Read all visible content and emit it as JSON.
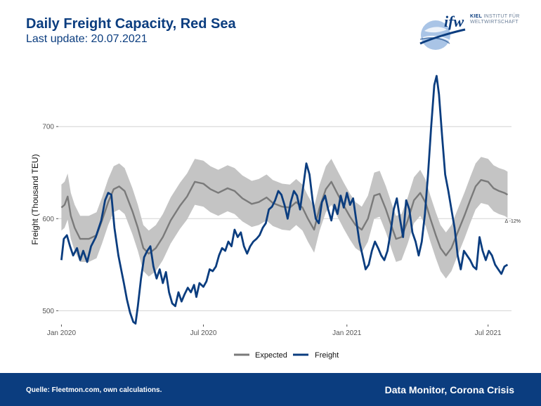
{
  "header": {
    "title": "Daily Freight Capacity, Red Sea",
    "subtitle": "Last update: 20.07.2021"
  },
  "logo": {
    "mark": "ifw",
    "line1_bold": "KIEL",
    "line1_rest": "INSTITUT FÜR",
    "line2": "WELTWIRTSCHAFT",
    "icon": "globe-icon"
  },
  "footer": {
    "source": "Quelle: Fleetmon.com, own calculations.",
    "brand": "Data Monitor, Corona Crisis"
  },
  "colors": {
    "freight": "#0b3d7f",
    "expected": "#7a7a7a",
    "band": "#c4c4c4",
    "footer_bg": "#0b3d7f"
  },
  "chart_data": {
    "type": "line",
    "title": "",
    "xlabel": "",
    "ylabel": "Freight (Thousand TEU)",
    "ylim": [
      485,
      765
    ],
    "y_ticks": [
      500,
      600,
      700
    ],
    "x_ticks": [
      "Jan 2020",
      "Jul 2020",
      "Jan 2021",
      "Jul 2021"
    ],
    "x_tick_dates": [
      "2020-01-01",
      "2020-07-01",
      "2021-01-01",
      "2021-07-01"
    ],
    "x_range": [
      "2019-12-28",
      "2021-07-31"
    ],
    "annotation": "Δ -12%",
    "grid": "horizontal",
    "legend_position": "bottom",
    "legend": [
      "Expected",
      "Freight"
    ],
    "series": [
      {
        "name": "Expected",
        "kind": "line-with-band",
        "points": [
          [
            "2020-01-01",
            612
          ],
          [
            "2020-01-05",
            615
          ],
          [
            "2020-01-09",
            624
          ],
          [
            "2020-01-13",
            603
          ],
          [
            "2020-01-18",
            590
          ],
          [
            "2020-01-25",
            578
          ],
          [
            "2020-02-05",
            578
          ],
          [
            "2020-02-15",
            582
          ],
          [
            "2020-02-22",
            598
          ],
          [
            "2020-03-01",
            618
          ],
          [
            "2020-03-08",
            632
          ],
          [
            "2020-03-15",
            635
          ],
          [
            "2020-03-22",
            630
          ],
          [
            "2020-04-01",
            608
          ],
          [
            "2020-04-08",
            590
          ],
          [
            "2020-04-15",
            568
          ],
          [
            "2020-04-22",
            562
          ],
          [
            "2020-05-01",
            568
          ],
          [
            "2020-05-10",
            580
          ],
          [
            "2020-05-20",
            598
          ],
          [
            "2020-06-01",
            614
          ],
          [
            "2020-06-10",
            624
          ],
          [
            "2020-06-20",
            640
          ],
          [
            "2020-07-01",
            638
          ],
          [
            "2020-07-10",
            632
          ],
          [
            "2020-07-20",
            628
          ],
          [
            "2020-08-01",
            633
          ],
          [
            "2020-08-10",
            630
          ],
          [
            "2020-08-20",
            622
          ],
          [
            "2020-09-01",
            616
          ],
          [
            "2020-09-10",
            618
          ],
          [
            "2020-09-20",
            623
          ],
          [
            "2020-09-28",
            617
          ],
          [
            "2020-10-10",
            613
          ],
          [
            "2020-10-20",
            612
          ],
          [
            "2020-10-28",
            618
          ],
          [
            "2020-11-05",
            612
          ],
          [
            "2020-11-12",
            600
          ],
          [
            "2020-11-20",
            588
          ],
          [
            "2020-11-27",
            612
          ],
          [
            "2020-12-05",
            632
          ],
          [
            "2020-12-12",
            640
          ],
          [
            "2020-12-20",
            627
          ],
          [
            "2020-12-28",
            614
          ],
          [
            "2021-01-05",
            602
          ],
          [
            "2021-01-12",
            593
          ],
          [
            "2021-01-20",
            588
          ],
          [
            "2021-01-28",
            600
          ],
          [
            "2021-02-05",
            625
          ],
          [
            "2021-02-12",
            627
          ],
          [
            "2021-02-20",
            610
          ],
          [
            "2021-02-28",
            590
          ],
          [
            "2021-03-05",
            578
          ],
          [
            "2021-03-12",
            580
          ],
          [
            "2021-03-20",
            598
          ],
          [
            "2021-03-28",
            620
          ],
          [
            "2021-04-05",
            628
          ],
          [
            "2021-04-12",
            617
          ],
          [
            "2021-04-18",
            600
          ],
          [
            "2021-04-25",
            582
          ],
          [
            "2021-05-01",
            568
          ],
          [
            "2021-05-08",
            560
          ],
          [
            "2021-05-15",
            568
          ],
          [
            "2021-05-22",
            583
          ],
          [
            "2021-06-01",
            604
          ],
          [
            "2021-06-08",
            620
          ],
          [
            "2021-06-15",
            635
          ],
          [
            "2021-06-22",
            642
          ],
          [
            "2021-07-01",
            640
          ],
          [
            "2021-07-08",
            633
          ],
          [
            "2021-07-15",
            630
          ],
          [
            "2021-07-22",
            628
          ],
          [
            "2021-07-26",
            626
          ]
        ],
        "band_halfwidth": 25
      },
      {
        "name": "Freight",
        "kind": "line",
        "points": [
          [
            "2020-01-01",
            555
          ],
          [
            "2020-01-04",
            578
          ],
          [
            "2020-01-08",
            582
          ],
          [
            "2020-01-12",
            570
          ],
          [
            "2020-01-16",
            560
          ],
          [
            "2020-01-21",
            568
          ],
          [
            "2020-01-25",
            555
          ],
          [
            "2020-01-29",
            565
          ],
          [
            "2020-02-03",
            553
          ],
          [
            "2020-02-08",
            570
          ],
          [
            "2020-02-14",
            580
          ],
          [
            "2020-02-21",
            598
          ],
          [
            "2020-02-26",
            620
          ],
          [
            "2020-03-01",
            628
          ],
          [
            "2020-03-05",
            626
          ],
          [
            "2020-03-09",
            590
          ],
          [
            "2020-03-14",
            560
          ],
          [
            "2020-03-18",
            543
          ],
          [
            "2020-03-21",
            530
          ],
          [
            "2020-03-25",
            512
          ],
          [
            "2020-03-29",
            498
          ],
          [
            "2020-04-02",
            488
          ],
          [
            "2020-04-05",
            486
          ],
          [
            "2020-04-08",
            505
          ],
          [
            "2020-04-12",
            535
          ],
          [
            "2020-04-16",
            558
          ],
          [
            "2020-04-20",
            565
          ],
          [
            "2020-04-24",
            570
          ],
          [
            "2020-04-28",
            548
          ],
          [
            "2020-05-02",
            535
          ],
          [
            "2020-05-06",
            545
          ],
          [
            "2020-05-10",
            530
          ],
          [
            "2020-05-14",
            542
          ],
          [
            "2020-05-18",
            520
          ],
          [
            "2020-05-22",
            508
          ],
          [
            "2020-05-26",
            505
          ],
          [
            "2020-05-30",
            520
          ],
          [
            "2020-06-03",
            510
          ],
          [
            "2020-06-07",
            518
          ],
          [
            "2020-06-11",
            525
          ],
          [
            "2020-06-15",
            520
          ],
          [
            "2020-06-19",
            528
          ],
          [
            "2020-06-22",
            515
          ],
          [
            "2020-06-26",
            530
          ],
          [
            "2020-07-01",
            526
          ],
          [
            "2020-07-05",
            532
          ],
          [
            "2020-07-09",
            545
          ],
          [
            "2020-07-13",
            543
          ],
          [
            "2020-07-17",
            548
          ],
          [
            "2020-07-21",
            560
          ],
          [
            "2020-07-25",
            568
          ],
          [
            "2020-07-29",
            565
          ],
          [
            "2020-08-02",
            575
          ],
          [
            "2020-08-06",
            570
          ],
          [
            "2020-08-10",
            588
          ],
          [
            "2020-08-14",
            580
          ],
          [
            "2020-08-18",
            585
          ],
          [
            "2020-08-22",
            570
          ],
          [
            "2020-08-26",
            562
          ],
          [
            "2020-08-30",
            570
          ],
          [
            "2020-09-03",
            575
          ],
          [
            "2020-09-07",
            578
          ],
          [
            "2020-09-11",
            582
          ],
          [
            "2020-09-15",
            590
          ],
          [
            "2020-09-19",
            595
          ],
          [
            "2020-09-23",
            610
          ],
          [
            "2020-09-27",
            613
          ],
          [
            "2020-10-01",
            620
          ],
          [
            "2020-10-05",
            630
          ],
          [
            "2020-10-09",
            626
          ],
          [
            "2020-10-13",
            615
          ],
          [
            "2020-10-17",
            600
          ],
          [
            "2020-10-21",
            618
          ],
          [
            "2020-10-25",
            630
          ],
          [
            "2020-10-29",
            625
          ],
          [
            "2020-11-02",
            610
          ],
          [
            "2020-11-06",
            635
          ],
          [
            "2020-11-10",
            660
          ],
          [
            "2020-11-14",
            648
          ],
          [
            "2020-11-18",
            620
          ],
          [
            "2020-11-22",
            600
          ],
          [
            "2020-11-26",
            595
          ],
          [
            "2020-11-30",
            618
          ],
          [
            "2020-12-04",
            625
          ],
          [
            "2020-12-08",
            610
          ],
          [
            "2020-12-12",
            598
          ],
          [
            "2020-12-16",
            615
          ],
          [
            "2020-12-20",
            605
          ],
          [
            "2020-12-24",
            625
          ],
          [
            "2020-12-28",
            612
          ],
          [
            "2021-01-01",
            628
          ],
          [
            "2021-01-05",
            615
          ],
          [
            "2021-01-09",
            622
          ],
          [
            "2021-01-13",
            598
          ],
          [
            "2021-01-17",
            575
          ],
          [
            "2021-01-21",
            560
          ],
          [
            "2021-01-25",
            545
          ],
          [
            "2021-01-29",
            550
          ],
          [
            "2021-02-02",
            565
          ],
          [
            "2021-02-06",
            575
          ],
          [
            "2021-02-10",
            568
          ],
          [
            "2021-02-14",
            560
          ],
          [
            "2021-02-18",
            555
          ],
          [
            "2021-02-22",
            565
          ],
          [
            "2021-02-26",
            585
          ],
          [
            "2021-03-02",
            610
          ],
          [
            "2021-03-06",
            622
          ],
          [
            "2021-03-10",
            600
          ],
          [
            "2021-03-14",
            580
          ],
          [
            "2021-03-18",
            620
          ],
          [
            "2021-03-22",
            610
          ],
          [
            "2021-03-26",
            585
          ],
          [
            "2021-03-30",
            575
          ],
          [
            "2021-04-03",
            560
          ],
          [
            "2021-04-07",
            575
          ],
          [
            "2021-04-11",
            605
          ],
          [
            "2021-04-15",
            648
          ],
          [
            "2021-04-19",
            700
          ],
          [
            "2021-04-23",
            745
          ],
          [
            "2021-04-26",
            755
          ],
          [
            "2021-04-29",
            735
          ],
          [
            "2021-05-03",
            690
          ],
          [
            "2021-05-07",
            648
          ],
          [
            "2021-05-11",
            630
          ],
          [
            "2021-05-15",
            610
          ],
          [
            "2021-05-19",
            590
          ],
          [
            "2021-05-23",
            560
          ],
          [
            "2021-05-27",
            545
          ],
          [
            "2021-05-31",
            565
          ],
          [
            "2021-06-04",
            560
          ],
          [
            "2021-06-08",
            555
          ],
          [
            "2021-06-12",
            548
          ],
          [
            "2021-06-16",
            545
          ],
          [
            "2021-06-20",
            580
          ],
          [
            "2021-06-24",
            565
          ],
          [
            "2021-06-28",
            555
          ],
          [
            "2021-07-02",
            565
          ],
          [
            "2021-07-06",
            560
          ],
          [
            "2021-07-10",
            550
          ],
          [
            "2021-07-14",
            545
          ],
          [
            "2021-07-18",
            540
          ],
          [
            "2021-07-22",
            548
          ],
          [
            "2021-07-26",
            550
          ]
        ]
      }
    ]
  }
}
